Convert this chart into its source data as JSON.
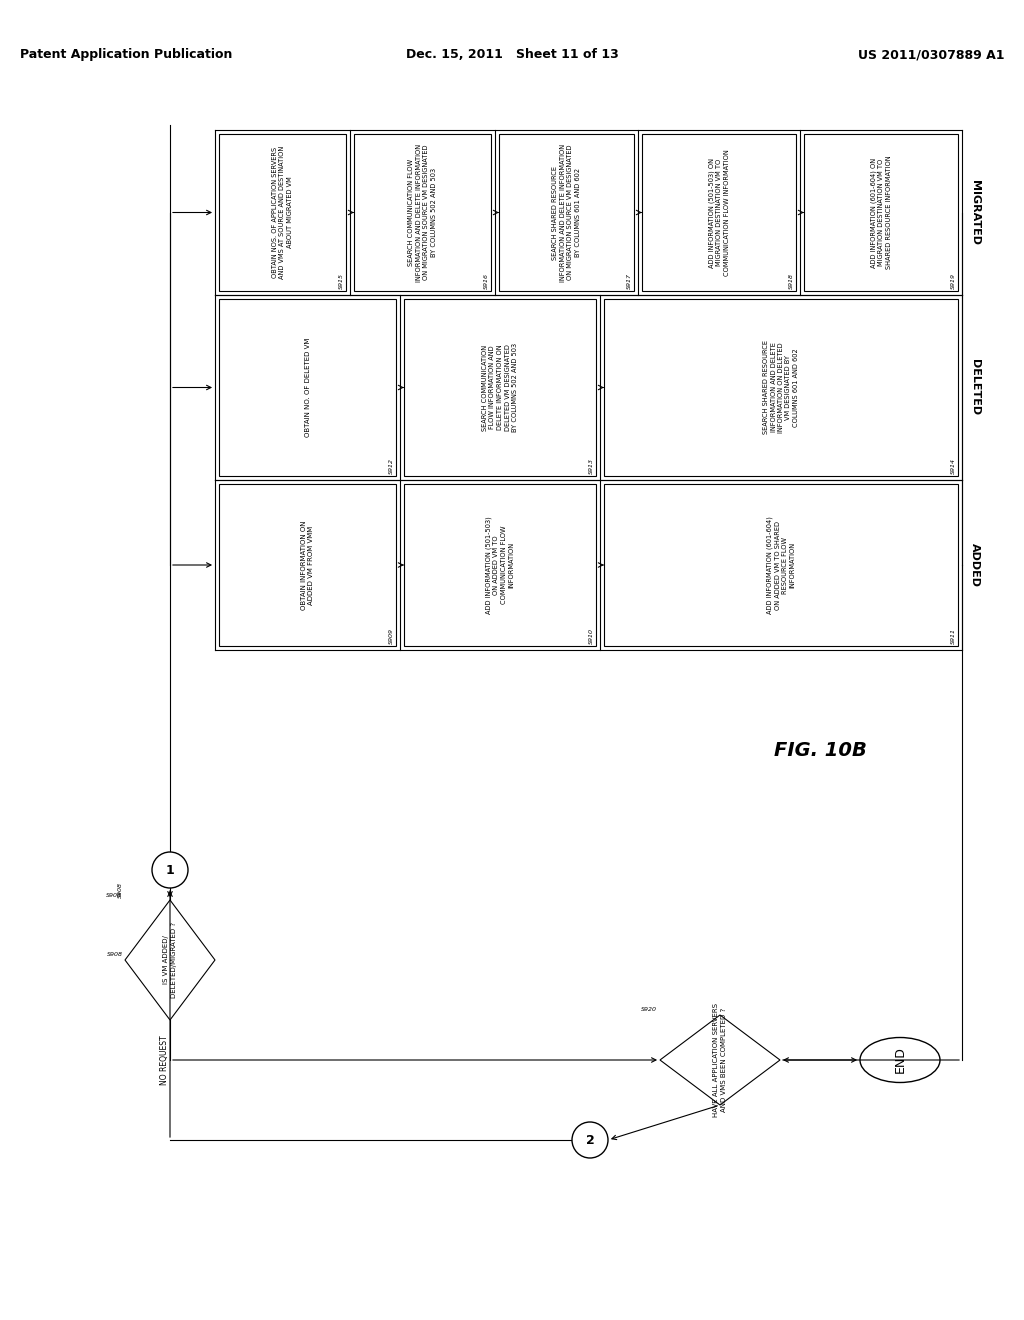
{
  "header_left": "Patent Application Publication",
  "header_center": "Dec. 15, 2011   Sheet 11 of 13",
  "header_right": "US 2011/0307889 A1",
  "fig_label": "FIG. 10B",
  "bg_color": "#ffffff",
  "line_color": "#000000",
  "text_color": "#000000",
  "step_S908": "IS VM ADDED/\nDELETED/MIGRATED ?",
  "step_S909": "OBTAIN INFORMATION ON\nADDED VM FROM VMM",
  "step_S910": "ADD INFORMATION (501-503)\nON ADDED VM TO\nCOMMUNICATION FLOW\nINFORMATION",
  "step_S911": "ADD INFORMATION (601-604)\nON ADDED VM TO SHARED\nRESOURCE FLOW\nINFORMATION",
  "step_S912": "OBTAIN NO. OF DELETED VM",
  "step_S913": "SEARCH COMMUNICATION\nFLOW INFORMATION AND\nDELETE INFORMATION ON\nDELETED VM DESIGNATED\nBY COLUMNS 502 AND 503",
  "step_S914": "SEARCH SHARED RESOURCE\nINFORMATION AND DELETE\nINFORMATION ON DELETED\nVM DESIGNATED BY\nCOLUMNS 601 AND 602",
  "step_S915": "OBTAIN NOS. OF APPLICATION SERVERS\nAND VMS AT SOURCE AND DESTINATION\nABOUT MIGRATED VM",
  "step_S916": "SEARCH COMMUNICATION FLOW\nINFORMATION AND DELETE INFORMATION\nON MIGRATION SOURCE VM DESIGNATED\nBY COLUMNS 502 AND 503",
  "step_S917": "SEARCH SHARED RESOURCE\nINFORMATION AND DELETE INFORMATION\nON MIGRATION SOURCE VM DESIGNATED\nBY COLUMNS 601 AND 602",
  "step_S918": "ADD INFORMATION (501-503) ON\nMIGRATION DESTINATION VM TO\nCOMMUNICATION FLOW INFORMATION",
  "step_S919": "ADD INFORMATION (601-604) ON\nMIGRATION DESTINATION VM TO\nSHARED RESOURCE INFORMATION",
  "step_S920": "HAVE ALL APPLICATION SERVERS\nAND VMS BEEN COMPLETED ?",
  "no_request": "NO REQUEST",
  "section_added": "ADDED",
  "section_deleted": "DELETED",
  "section_migrated": "MIGRATED"
}
